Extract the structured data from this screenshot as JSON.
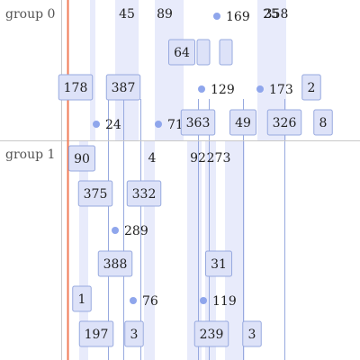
{
  "colors": {
    "background": "#ffffff",
    "group_border": "#c8c8c8",
    "group_label": "#555555",
    "box_fill": "#dde2f8",
    "box_stroke": "#97a9df",
    "range_fill": "#e8ebfb",
    "connector": "#97a9df",
    "point": "#8fa6ec",
    "current_time": "#f07a55",
    "text": "#222222"
  },
  "chart_data": {
    "type": "timeline",
    "groups": [
      {
        "name": "group 0",
        "items": [
          {
            "kind": "text",
            "label": "45",
            "t": 141,
            "row": 0
          },
          {
            "kind": "text",
            "label": "89",
            "t": 183,
            "row": 0
          },
          {
            "kind": "point",
            "label": "169",
            "t": 241,
            "row": 0
          },
          {
            "kind": "text",
            "label": "25",
            "t": 301,
            "row": 0
          },
          {
            "kind": "text",
            "label": "358",
            "t": 307,
            "row": 0
          },
          {
            "kind": "box",
            "label": "64",
            "t": 202,
            "row": 1
          },
          {
            "kind": "box",
            "label": "",
            "t": 226,
            "row": 1
          },
          {
            "kind": "box",
            "label": "",
            "t": 251,
            "row": 1
          },
          {
            "kind": "box",
            "label": "178",
            "t": 84,
            "row": 2
          },
          {
            "kind": "box",
            "label": "387",
            "t": 137,
            "row": 2
          },
          {
            "kind": "point",
            "label": "129",
            "t": 224,
            "row": 2
          },
          {
            "kind": "point",
            "label": "173",
            "t": 289,
            "row": 2
          },
          {
            "kind": "box",
            "label": "2",
            "t": 346,
            "row": 2
          },
          {
            "kind": "point",
            "label": "24",
            "t": 107,
            "row": 3
          },
          {
            "kind": "point",
            "label": "71",
            "t": 176,
            "row": 3
          },
          {
            "kind": "box",
            "label": "363",
            "t": 220,
            "row": 3
          },
          {
            "kind": "box",
            "label": "49",
            "t": 270,
            "row": 3
          },
          {
            "kind": "box",
            "label": "326",
            "t": 316,
            "row": 3
          },
          {
            "kind": "box",
            "label": "8",
            "t": 359,
            "row": 3
          }
        ]
      },
      {
        "name": "group 1",
        "items": [
          {
            "kind": "box",
            "label": "90",
            "t": 91,
            "row": 0
          },
          {
            "kind": "text",
            "label": "4",
            "t": 169,
            "row": 0
          },
          {
            "kind": "text",
            "label": "92",
            "t": 220,
            "row": 0
          },
          {
            "kind": "text",
            "label": "273",
            "t": 243,
            "row": 0
          },
          {
            "kind": "box",
            "label": "375",
            "t": 106,
            "row": 1
          },
          {
            "kind": "box",
            "label": "332",
            "t": 160,
            "row": 1
          },
          {
            "kind": "point",
            "label": "289",
            "t": 128,
            "row": 2
          },
          {
            "kind": "box",
            "label": "388",
            "t": 128,
            "row": 3
          },
          {
            "kind": "box",
            "label": "31",
            "t": 243,
            "row": 3
          },
          {
            "kind": "box",
            "label": "1",
            "t": 91,
            "row": 4
          },
          {
            "kind": "point",
            "label": "76",
            "t": 148,
            "row": 4
          },
          {
            "kind": "point",
            "label": "119",
            "t": 226,
            "row": 4
          },
          {
            "kind": "box",
            "label": "197",
            "t": 107,
            "row": 5
          },
          {
            "kind": "box",
            "label": "3",
            "t": 149,
            "row": 5
          },
          {
            "kind": "box",
            "label": "239",
            "t": 235,
            "row": 5
          },
          {
            "kind": "box",
            "label": "3",
            "t": 280,
            "row": 5
          }
        ]
      }
    ],
    "ranges": [
      {
        "start": 100,
        "end": 106
      },
      {
        "start": 128,
        "end": 154
      },
      {
        "start": 172,
        "end": 204
      },
      {
        "start": 286,
        "end": 318
      }
    ],
    "ranges_group1": [
      {
        "start": 88,
        "end": 98
      },
      {
        "start": 160,
        "end": 172
      },
      {
        "start": 208,
        "end": 224
      },
      {
        "start": 228,
        "end": 240
      },
      {
        "start": 250,
        "end": 272
      }
    ],
    "connectors": [
      120,
      137,
      156,
      220,
      232,
      270,
      316
    ],
    "current_time": 75,
    "axis_start": 68,
    "axis_end": 400
  }
}
